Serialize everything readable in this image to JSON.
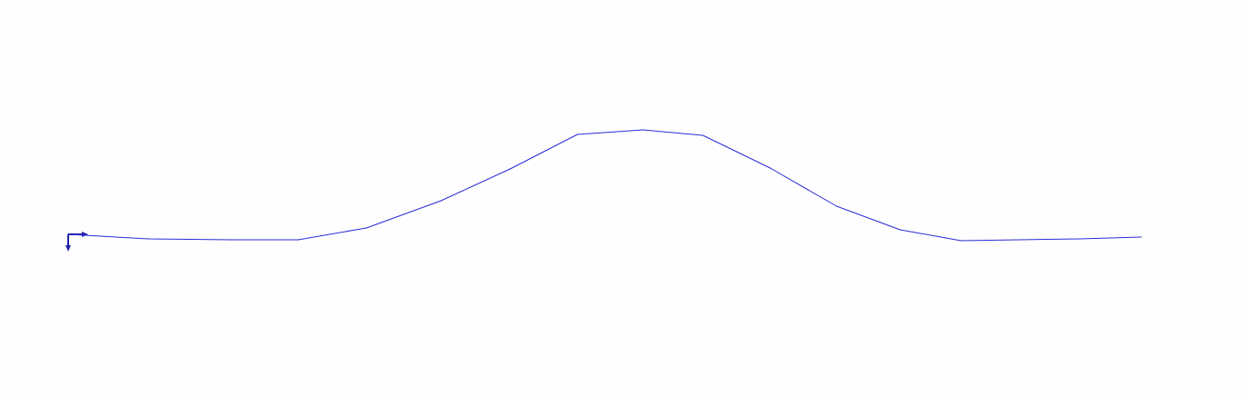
{
  "chart_data": {
    "type": "line",
    "title": "",
    "xlabel": "",
    "ylabel": "",
    "grid": false,
    "legend": "none",
    "line_color": "#2b2bd9",
    "axis_color": "#2222aa",
    "series": [
      {
        "values": [
          [
            0,
            0
          ],
          [
            88,
            -5
          ],
          [
            180,
            -6
          ],
          [
            253,
            -6
          ],
          [
            328,
            7
          ],
          [
            410,
            37
          ],
          [
            486,
            72
          ],
          [
            560,
            110
          ],
          [
            632,
            115
          ],
          [
            698,
            109
          ],
          [
            772,
            73
          ],
          [
            845,
            31
          ],
          [
            915,
            5
          ],
          [
            982,
            -7
          ],
          [
            1112,
            -5
          ],
          [
            1180,
            -3
          ]
        ]
      }
    ]
  }
}
